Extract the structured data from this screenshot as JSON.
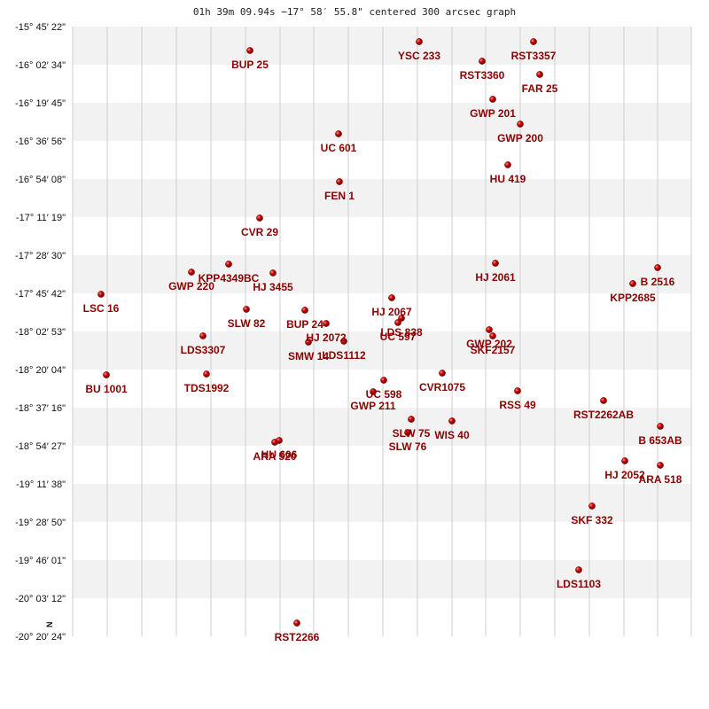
{
  "chart_data": {
    "type": "scatter",
    "title": "01h 39m 09.94s −17° 58′ 55.8\" centered 300 arcsec graph",
    "north_label": "N",
    "y_ticks": [
      "-15° 45′ 22\"",
      "-16° 02′ 34\"",
      "-16° 19′ 45\"",
      "-16° 36′ 56\"",
      "-16° 54′ 08\"",
      "-17° 11′ 19\"",
      "-17° 28′ 30\"",
      "-17° 45′ 42\"",
      "-18° 02′ 53\"",
      "-18° 20′ 04\"",
      "-18° 37′ 16\"",
      "-18° 54′ 27\"",
      "-19° 11′ 38\"",
      "-19° 28′ 50\"",
      "-19° 46′ 01\"",
      "-20° 03′ 12\"",
      "-20° 20′ 24\""
    ],
    "xlim": [
      0,
      698
    ],
    "ylim": [
      0,
      688
    ],
    "star_color": "#cc0000",
    "label_color": "#8b0000",
    "stars": [
      {
        "name": "BUP  25",
        "x": 200,
        "y": 27
      },
      {
        "name": "YSC 233",
        "x": 391,
        "y": 17
      },
      {
        "name": "RST3357",
        "x": 520,
        "y": 17
      },
      {
        "name": "RST3360",
        "x": 462,
        "y": 39
      },
      {
        "name": "FAR  25",
        "x": 527,
        "y": 54
      },
      {
        "name": "GWP 201",
        "x": 474,
        "y": 82
      },
      {
        "name": "GWP 200",
        "x": 505,
        "y": 110
      },
      {
        "name": "UC  601",
        "x": 300,
        "y": 121
      },
      {
        "name": "HU  419",
        "x": 491,
        "y": 156
      },
      {
        "name": "FEN   1",
        "x": 301,
        "y": 175
      },
      {
        "name": "CVR  29",
        "x": 211,
        "y": 216
      },
      {
        "name": "HJ 2061",
        "x": 477,
        "y": 267
      },
      {
        "name": "B  2516",
        "x": 660,
        "y": 272
      },
      {
        "name": "KPP4349BC",
        "x": 176,
        "y": 268
      },
      {
        "name": "GWP 220",
        "x": 134,
        "y": 277
      },
      {
        "name": "HJ 3455",
        "x": 226,
        "y": 278
      },
      {
        "name": "KPP2685",
        "x": 632,
        "y": 290
      },
      {
        "name": "LSC  16",
        "x": 32,
        "y": 302
      },
      {
        "name": "HJ 2067",
        "x": 360,
        "y": 306
      },
      {
        "name": "SLW  82",
        "x": 196,
        "y": 319
      },
      {
        "name": "BUP  24",
        "x": 262,
        "y": 320
      },
      {
        "name": "LDS 838",
        "x": 371,
        "y": 329
      },
      {
        "name": "UC  597",
        "x": 367,
        "y": 334
      },
      {
        "name": "HJ 2072",
        "x": 286,
        "y": 335
      },
      {
        "name": "GWP 202",
        "x": 470,
        "y": 342
      },
      {
        "name": "SKF2157",
        "x": 474,
        "y": 349
      },
      {
        "name": "LDS3307",
        "x": 147,
        "y": 349
      },
      {
        "name": "SMW  14",
        "x": 266,
        "y": 356
      },
      {
        "name": "LDS1112",
        "x": 306,
        "y": 355
      },
      {
        "name": "BU 1001",
        "x": 38,
        "y": 393
      },
      {
        "name": "TDS1992",
        "x": 151,
        "y": 392
      },
      {
        "name": "CVR1075",
        "x": 417,
        "y": 391
      },
      {
        "name": "UC  598",
        "x": 351,
        "y": 399
      },
      {
        "name": "GWP 211",
        "x": 339,
        "y": 412
      },
      {
        "name": "RSS  49",
        "x": 502,
        "y": 411
      },
      {
        "name": "RST2262AB",
        "x": 599,
        "y": 422
      },
      {
        "name": "SLW  75",
        "x": 382,
        "y": 443
      },
      {
        "name": "WIS  40",
        "x": 428,
        "y": 445
      },
      {
        "name": "SLW  76",
        "x": 378,
        "y": 458
      },
      {
        "name": "B   653AB",
        "x": 663,
        "y": 451
      },
      {
        "name": "HU  606",
        "x": 233,
        "y": 467
      },
      {
        "name": "ARA 520",
        "x": 228,
        "y": 469
      },
      {
        "name": "HJ 2052",
        "x": 623,
        "y": 490
      },
      {
        "name": "ARA 518",
        "x": 663,
        "y": 495
      },
      {
        "name": "SKF 332",
        "x": 586,
        "y": 541
      },
      {
        "name": "LDS1103",
        "x": 571,
        "y": 613
      },
      {
        "name": "RST2266",
        "x": 253,
        "y": 673
      }
    ]
  }
}
